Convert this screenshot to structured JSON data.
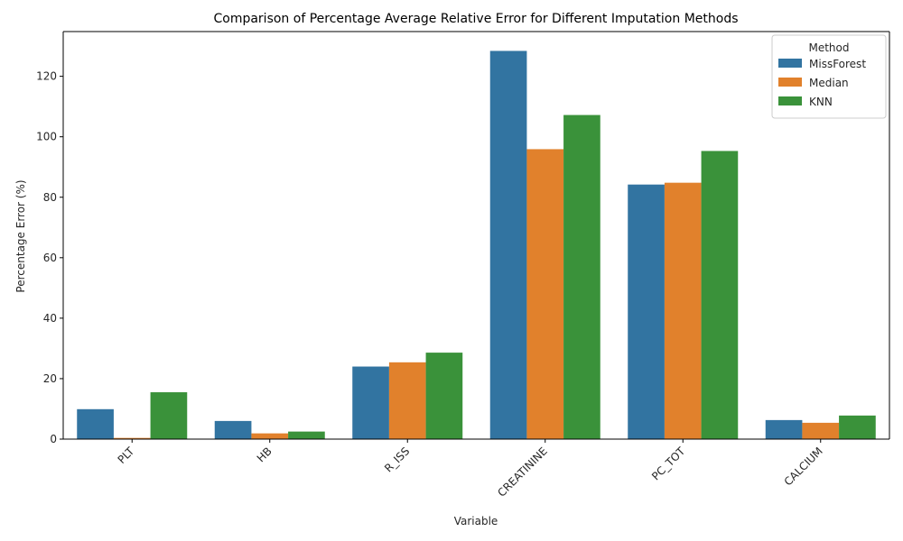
{
  "chart_data": {
    "type": "bar",
    "title": "Comparison of Percentage Average Relative Error for Different Imputation Methods",
    "xlabel": "Variable",
    "ylabel": "Percentage Error (%)",
    "categories": [
      "PLT",
      "HB",
      "R_ISS",
      "CREATININE",
      "PC_TOT",
      "CALCIUM"
    ],
    "series": [
      {
        "name": "MissForest",
        "color": "#3274a1",
        "values": [
          9.9,
          6.0,
          24.0,
          128.4,
          84.2,
          6.3
        ]
      },
      {
        "name": "Median",
        "color": "#e1812c",
        "values": [
          0.4,
          1.9,
          25.4,
          95.9,
          84.8,
          5.4
        ]
      },
      {
        "name": "KNN",
        "color": "#3a923a",
        "values": [
          15.5,
          2.5,
          28.6,
          107.2,
          95.3,
          7.8
        ]
      }
    ],
    "ylim": [
      0,
      134.8
    ],
    "yticks": [
      0,
      20,
      40,
      60,
      80,
      100,
      120
    ],
    "grid": false,
    "legend": {
      "title": "Method",
      "position": "top-right"
    }
  }
}
